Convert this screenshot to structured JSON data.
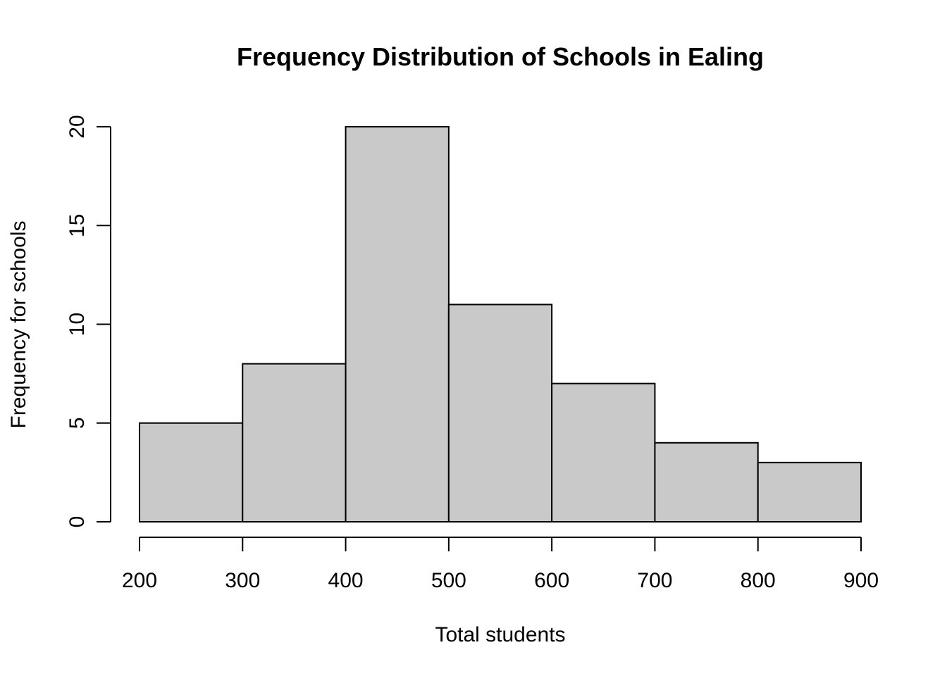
{
  "chart_data": {
    "type": "bar",
    "title": "Frequency Distribution of Schools in Ealing",
    "xlabel": "Total students",
    "ylabel": "Frequency for schools",
    "bins": [
      {
        "from": 200,
        "to": 300,
        "count": 5
      },
      {
        "from": 300,
        "to": 400,
        "count": 8
      },
      {
        "from": 400,
        "to": 500,
        "count": 20
      },
      {
        "from": 500,
        "to": 600,
        "count": 11
      },
      {
        "from": 600,
        "to": 700,
        "count": 7
      },
      {
        "from": 700,
        "to": 800,
        "count": 4
      },
      {
        "from": 800,
        "to": 900,
        "count": 3
      }
    ],
    "xticks": [
      "200",
      "300",
      "400",
      "500",
      "600",
      "700",
      "800",
      "900"
    ],
    "yticks": [
      "0",
      "5",
      "10",
      "15",
      "20"
    ],
    "xlim": [
      200,
      900
    ],
    "ylim": [
      0,
      20
    ],
    "bar_color": "#c9c9c9",
    "grid": false
  }
}
